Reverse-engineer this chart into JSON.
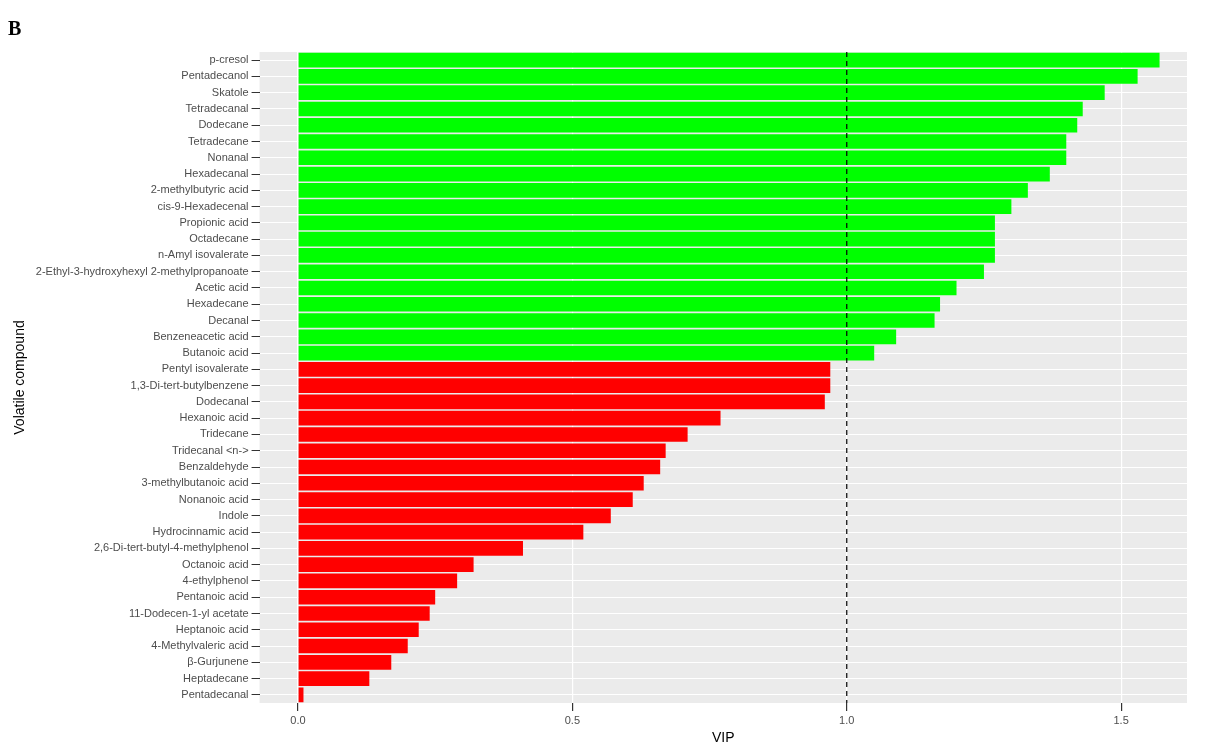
{
  "chart_data": {
    "type": "bar",
    "orientation": "horizontal",
    "title": "B",
    "xlabel": "VIP",
    "ylabel": "Volatile compound",
    "categories": [
      "p-cresol",
      "Pentadecanol",
      "Skatole",
      "Tetradecanal",
      "Dodecane",
      "Tetradecane",
      "Nonanal",
      "Hexadecanal",
      "2-methylbutyric acid",
      "cis-9-Hexadecenal",
      "Propionic acid",
      "Octadecane",
      "n-Amyl isovalerate",
      "2-Ethyl-3-hydroxyhexyl 2-methylpropanoate",
      "Acetic acid",
      "Hexadecane",
      "Decanal",
      "Benzeneacetic acid",
      "Butanoic acid",
      "Pentyl isovalerate",
      "1,3-Di-tert-butylbenzene",
      "Dodecanal",
      "Hexanoic acid",
      "Tridecane",
      "Tridecanal <n->",
      "Benzaldehyde",
      "3-methylbutanoic acid",
      "Nonanoic acid",
      "Indole",
      "Hydrocinnamic acid",
      "2,6-Di-tert-butyl-4-methylphenol",
      "Octanoic acid",
      "4-ethylphenol",
      "Pentanoic acid",
      "11-Dodecen-1-yl acetate",
      "Heptanoic acid",
      "4-Methylvaleric acid",
      "β-Gurjunene",
      "Heptadecane",
      "Pentadecanal"
    ],
    "values": [
      1.57,
      1.53,
      1.47,
      1.43,
      1.42,
      1.4,
      1.4,
      1.37,
      1.33,
      1.3,
      1.27,
      1.27,
      1.27,
      1.25,
      1.2,
      1.17,
      1.16,
      1.09,
      1.05,
      0.97,
      0.97,
      0.96,
      0.77,
      0.71,
      0.67,
      0.66,
      0.63,
      0.61,
      0.57,
      0.52,
      0.41,
      0.32,
      0.29,
      0.25,
      0.24,
      0.22,
      0.2,
      0.17,
      0.13,
      0.01
    ],
    "colors": [
      "#00ff00",
      "#00ff00",
      "#00ff00",
      "#00ff00",
      "#00ff00",
      "#00ff00",
      "#00ff00",
      "#00ff00",
      "#00ff00",
      "#00ff00",
      "#00ff00",
      "#00ff00",
      "#00ff00",
      "#00ff00",
      "#00ff00",
      "#00ff00",
      "#00ff00",
      "#00ff00",
      "#00ff00",
      "#ff0000",
      "#ff0000",
      "#ff0000",
      "#ff0000",
      "#ff0000",
      "#ff0000",
      "#ff0000",
      "#ff0000",
      "#ff0000",
      "#ff0000",
      "#ff0000",
      "#ff0000",
      "#ff0000",
      "#ff0000",
      "#ff0000",
      "#ff0000",
      "#ff0000",
      "#ff0000",
      "#ff0000",
      "#ff0000",
      "#ff0000"
    ],
    "xlim": [
      -0.07,
      1.62
    ],
    "xticks": [
      {
        "value": 0,
        "label": "0.0"
      },
      {
        "value": 0.5,
        "label": "0.5"
      },
      {
        "value": 1,
        "label": "1.0"
      },
      {
        "value": 1.5,
        "label": "1.5"
      }
    ],
    "ref_lines": [
      {
        "axis": "x",
        "value": 1,
        "line_style": "dashed",
        "color": "#000000"
      }
    ],
    "grid": true,
    "legend": false
  }
}
